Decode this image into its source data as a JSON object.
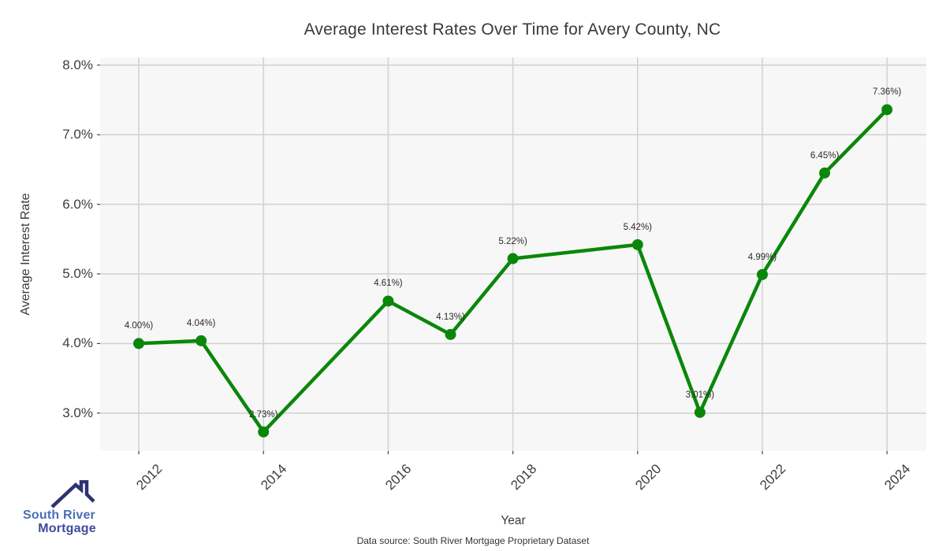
{
  "chart_data": {
    "type": "line",
    "title": "Average Interest Rates Over Time for Avery County, NC",
    "xlabel": "Year",
    "ylabel": "Average Interest Rate",
    "x": [
      2012,
      2013,
      2014,
      2016,
      2017,
      2018,
      2020,
      2021,
      2022,
      2023,
      2024
    ],
    "y": [
      4.0,
      4.04,
      2.73,
      4.61,
      4.13,
      5.22,
      5.42,
      3.01,
      4.99,
      6.45,
      7.36
    ],
    "point_labels": [
      "4.00%)",
      "4.04%)",
      "2.73%)",
      "4.61%)",
      "4.13%)",
      "5.22%)",
      "5.42%)",
      "3.01%)",
      "4.99%)",
      "6.45%)",
      "7.36%)"
    ],
    "x_ticks": {
      "values": [
        2012,
        2014,
        2016,
        2018,
        2020,
        2022,
        2024
      ],
      "labels": [
        "2012",
        "2014",
        "2016",
        "2018",
        "2020",
        "2022",
        "2024"
      ]
    },
    "y_ticks": {
      "values": [
        8,
        7,
        6,
        5,
        4,
        3
      ],
      "labels": [
        "8.0%",
        "7.0%",
        "6.0%",
        "5.0%",
        "4.0%",
        "3.0%"
      ]
    },
    "xlim": [
      2011.38,
      2024.63
    ],
    "ylim": [
      2.455,
      8.11
    ],
    "grid": true,
    "legend_position": "none",
    "line_color": "#0a870a",
    "marker_color": "#0a870a",
    "grid_color": "#d3d3d3",
    "plot_bg": "#f7f7f7",
    "tick_color": "#444444"
  },
  "footer": {
    "source": "Data source: South River Mortgage Proprietary Dataset"
  },
  "logo": {
    "line1": "South River",
    "line2": "Mortgage",
    "colors": {
      "roof": "#2c3272",
      "line1": "#4a70b5",
      "line2": "#3f4a9e"
    }
  }
}
